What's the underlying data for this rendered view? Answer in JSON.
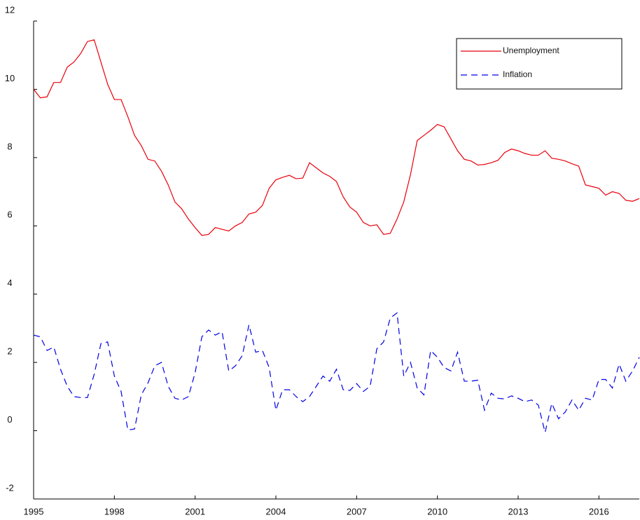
{
  "chart_data": {
    "type": "line",
    "x": [
      1995,
      1995.25,
      1995.5,
      1995.75,
      1996,
      1996.25,
      1996.5,
      1996.75,
      1997,
      1997.25,
      1997.5,
      1997.75,
      1998,
      1998.25,
      1998.5,
      1998.75,
      1999,
      1999.25,
      1999.5,
      1999.75,
      2000,
      2000.25,
      2000.5,
      2000.75,
      2001,
      2001.25,
      2001.5,
      2001.75,
      2002,
      2002.25,
      2002.5,
      2002.75,
      2003,
      2003.25,
      2003.5,
      2003.75,
      2004,
      2004.25,
      2004.5,
      2004.75,
      2005,
      2005.25,
      2005.5,
      2005.75,
      2006,
      2006.25,
      2006.5,
      2006.75,
      2007,
      2007.25,
      2007.5,
      2007.75,
      2008,
      2008.25,
      2008.5,
      2008.75,
      2009,
      2009.25,
      2009.5,
      2009.75,
      2010,
      2010.25,
      2010.5,
      2010.75,
      2011,
      2011.25,
      2011.5,
      2011.75,
      2012,
      2012.25,
      2012.5,
      2012.75,
      2013,
      2013.25,
      2013.5,
      2013.75,
      2014,
      2014.25,
      2014.5,
      2014.75,
      2015,
      2015.25,
      2015.5,
      2015.75,
      2016,
      2016.25,
      2016.5,
      2016.75,
      2017,
      2017.25,
      2017.5
    ],
    "series": [
      {
        "name": "Unemployment",
        "color": "#e8000b",
        "dash": false,
        "values": [
          10.0,
          9.75,
          9.78,
          10.2,
          10.2,
          10.65,
          10.8,
          11.05,
          11.4,
          11.45,
          10.8,
          10.15,
          9.7,
          9.7,
          9.2,
          8.65,
          8.35,
          7.95,
          7.9,
          7.6,
          7.2,
          6.7,
          6.5,
          6.2,
          5.95,
          5.72,
          5.75,
          5.95,
          5.9,
          5.85,
          6.0,
          6.1,
          6.35,
          6.4,
          6.6,
          7.1,
          7.35,
          7.42,
          7.48,
          7.38,
          7.4,
          7.85,
          7.7,
          7.55,
          7.45,
          7.3,
          6.85,
          6.55,
          6.4,
          6.1,
          6.0,
          6.03,
          5.75,
          5.78,
          6.2,
          6.7,
          7.5,
          8.5,
          8.65,
          8.8,
          8.97,
          8.9,
          8.55,
          8.2,
          7.95,
          7.9,
          7.78,
          7.8,
          7.85,
          7.92,
          8.15,
          8.25,
          8.2,
          8.12,
          8.07,
          8.07,
          8.2,
          7.98,
          7.95,
          7.9,
          7.82,
          7.75,
          7.2,
          7.15,
          7.1,
          6.9,
          7.0,
          6.95,
          6.75,
          6.72,
          6.8
        ]
      },
      {
        "name": "Inflation",
        "color": "#0000e6",
        "dash": true,
        "values": [
          2.8,
          2.75,
          2.35,
          2.45,
          1.8,
          1.3,
          1.0,
          0.97,
          0.97,
          1.65,
          2.55,
          2.6,
          1.6,
          1.15,
          0.02,
          0.05,
          1.05,
          1.4,
          1.9,
          2.0,
          1.3,
          0.95,
          0.9,
          1.0,
          1.7,
          2.75,
          2.95,
          2.8,
          2.9,
          1.75,
          1.9,
          2.2,
          3.1,
          2.3,
          2.35,
          1.85,
          0.6,
          1.2,
          1.2,
          1.0,
          0.85,
          1.0,
          1.3,
          1.6,
          1.45,
          1.8,
          1.2,
          1.18,
          1.38,
          1.15,
          1.3,
          2.4,
          2.6,
          3.3,
          3.45,
          1.6,
          2.0,
          1.25,
          1.05,
          2.35,
          2.15,
          1.85,
          1.75,
          2.3,
          1.45,
          1.45,
          1.48,
          0.6,
          1.1,
          0.95,
          0.93,
          1.02,
          0.95,
          0.85,
          0.9,
          0.75,
          -0.05,
          0.8,
          0.35,
          0.55,
          0.9,
          0.6,
          0.95,
          0.9,
          1.5,
          1.5,
          1.25,
          1.95,
          1.45,
          1.75,
          2.15
        ]
      }
    ],
    "xlim": [
      1995,
      2017.5
    ],
    "xticks": [
      1995,
      1998,
      2001,
      2004,
      2007,
      2010,
      2013,
      2016
    ],
    "ylim": [
      -2,
      12
    ],
    "yticks": [
      -2,
      0,
      2,
      4,
      6,
      8,
      10,
      12
    ],
    "legend": "upper right"
  }
}
